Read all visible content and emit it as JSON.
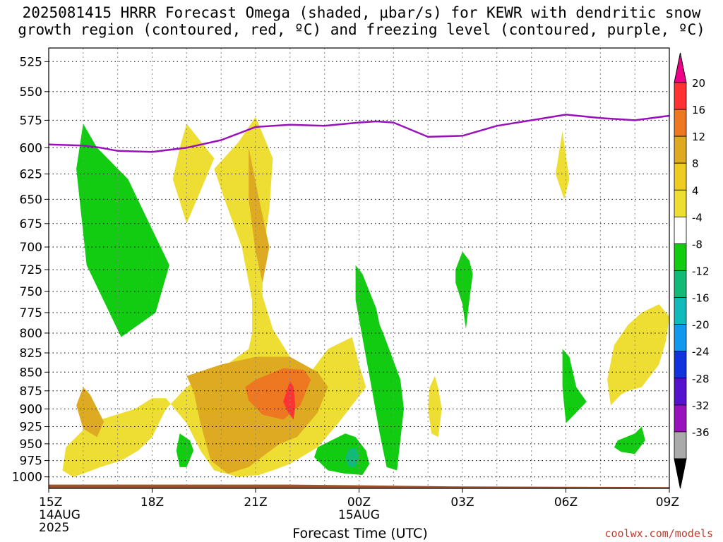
{
  "title": {
    "line1": "2025081415 HRRR Forecast Omega (shaded, μbar/s) for KEWR with dendritic snow",
    "line2": "growth region (contoured, red, ºC) and freezing level (contoured, purple, ºC)"
  },
  "watermark": "coolwx.com/models",
  "chart_data": {
    "type": "time-height",
    "title": "2025081415 HRRR Forecast Omega (shaded, μbar/s) for KEWR with dendritic snow growth region (contoured, red, ºC) and freezing level (contoured, purple, ºC)",
    "xlabel": "Forecast Time (UTC)",
    "ylabel": "",
    "x_ticks": [
      {
        "hour": 0,
        "lines": [
          "15Z",
          "14AUG",
          "2025"
        ]
      },
      {
        "hour": 3,
        "lines": [
          "18Z"
        ]
      },
      {
        "hour": 6,
        "lines": [
          "21Z"
        ]
      },
      {
        "hour": 9,
        "lines": [
          "00Z",
          "15AUG"
        ]
      },
      {
        "hour": 12,
        "lines": [
          "03Z"
        ]
      },
      {
        "hour": 15,
        "lines": [
          "06Z"
        ]
      },
      {
        "hour": 18,
        "lines": [
          "09Z"
        ]
      }
    ],
    "xlim": [
      0,
      18
    ],
    "y_ticks": [
      525,
      550,
      575,
      600,
      625,
      650,
      675,
      700,
      725,
      750,
      775,
      800,
      825,
      850,
      875,
      900,
      925,
      950,
      975,
      1000
    ],
    "ylim": [
      1018,
      514
    ],
    "y_scale": "log-pressure (hPa), inverted",
    "grid": true,
    "colorbar": {
      "labels": [
        "20",
        "16",
        "12",
        "8",
        "4",
        "-4",
        "-8",
        "-12",
        "-16",
        "-20",
        "-24",
        "-28",
        "-32",
        "-36"
      ],
      "colors": [
        "#ff3333",
        "#ee7722",
        "#ddaa22",
        "#eecc22",
        "#eedd33",
        "#ffffff",
        "#11cc11",
        "#11bb77",
        "#11bbbb",
        "#1199ee",
        "#1133dd",
        "#5511cc",
        "#9911bb",
        "#aaaaaa"
      ],
      "top_arrow": "#ee0088",
      "bottom_arrow": "#000000"
    },
    "freezing_level": {
      "color": "#9911bb",
      "x": [
        0,
        1,
        1.5,
        2,
        3,
        4,
        5,
        6,
        7,
        8,
        9,
        9.5,
        10,
        11,
        12,
        13,
        14,
        15,
        16,
        17,
        18
      ],
      "p": [
        597,
        598,
        600,
        603,
        604,
        600,
        593,
        581,
        579,
        580,
        577,
        576,
        577,
        590,
        589,
        580,
        575,
        570,
        573,
        575,
        571
      ]
    },
    "surface_fill": {
      "color": "#a0522d",
      "x": [
        0,
        7,
        12,
        18
      ],
      "p_top": [
        1012,
        1012,
        1015,
        1016
      ]
    },
    "omega_regions": [
      {
        "level": "-8",
        "color": "#11cc11",
        "x": [
          1.0,
          1.4,
          2.3,
          3.5,
          3.1,
          2.1,
          1.1,
          0.8
        ],
        "p": [
          578,
          600,
          630,
          720,
          775,
          805,
          720,
          620
        ]
      },
      {
        "level": "4",
        "color": "#eedd33",
        "x": [
          4.0,
          4.8,
          4.3,
          4.0,
          3.6,
          3.8
        ],
        "p": [
          578,
          610,
          650,
          675,
          630,
          600
        ]
      },
      {
        "level": "4",
        "color": "#eedd33",
        "x": [
          5.5,
          6.0,
          6.5,
          6.4,
          6.2,
          6.2,
          6.5,
          7.0,
          7.6,
          8.1,
          8.8,
          9.0,
          9.2,
          8.4,
          7.8,
          7.0,
          6.6,
          6.1,
          5.5,
          4.8,
          4.4,
          4.0,
          3.4,
          3.0,
          2.5,
          1.5,
          1.0,
          0.5,
          0.4,
          0.7,
          1.0,
          1.5,
          2.1,
          2.6,
          3.0,
          3.4,
          4.0,
          4.3,
          5.0,
          5.8,
          5.9,
          5.9,
          5.6,
          5.1,
          4.8
        ],
        "p": [
          595,
          572,
          610,
          660,
          710,
          755,
          795,
          830,
          850,
          820,
          805,
          840,
          870,
          920,
          955,
          980,
          988,
          997,
          1000,
          990,
          960,
          920,
          885,
          885,
          900,
          915,
          930,
          955,
          990,
          1000,
          995,
          985,
          975,
          960,
          940,
          900,
          870,
          860,
          845,
          820,
          800,
          760,
          700,
          650,
          620
        ]
      },
      {
        "level": "8",
        "color": "#ddaa22",
        "x": [
          5.8,
          6.1,
          6.4,
          6.2,
          6.0,
          5.8
        ],
        "p": [
          600,
          650,
          700,
          740,
          705,
          650
        ]
      },
      {
        "level": "8",
        "color": "#ddaa22",
        "x": [
          4.0,
          5.0,
          6.0,
          7.0,
          7.8,
          8.1,
          7.8,
          7.2,
          6.7,
          6.3,
          5.8,
          5.2,
          4.7,
          4.4,
          4.2
        ],
        "p": [
          855,
          840,
          830,
          830,
          850,
          870,
          905,
          940,
          950,
          965,
          985,
          995,
          975,
          920,
          875
        ]
      },
      {
        "level": "8",
        "color": "#ddaa22",
        "x": [
          1.0,
          1.2,
          1.6,
          1.4,
          1.0,
          0.8
        ],
        "p": [
          870,
          880,
          918,
          940,
          928,
          895
        ]
      },
      {
        "level": "12",
        "color": "#ee7722",
        "x": [
          6.0,
          6.8,
          7.4,
          7.6,
          7.3,
          6.8,
          6.2,
          5.8,
          5.7
        ],
        "p": [
          860,
          845,
          847,
          860,
          895,
          915,
          908,
          888,
          870
        ]
      },
      {
        "level": "16",
        "color": "#ff3333",
        "x": [
          7.0,
          7.1,
          7.15,
          7.1,
          6.95,
          6.8
        ],
        "p": [
          862,
          870,
          895,
          915,
          905,
          890
        ]
      },
      {
        "level": "-8",
        "color": "#11cc11",
        "x": [
          3.8,
          4.1,
          4.2,
          4.0,
          3.8,
          3.7
        ],
        "p": [
          935,
          945,
          960,
          985,
          985,
          960
        ]
      },
      {
        "level": "-8",
        "color": "#11cc11",
        "x": [
          7.8,
          8.6,
          8.9,
          9.2,
          9.3,
          9.1,
          8.6,
          8.1,
          7.7
        ],
        "p": [
          955,
          935,
          940,
          960,
          980,
          997,
          995,
          990,
          970
        ]
      },
      {
        "level": "-12",
        "color": "#11bb77",
        "x": [
          8.7,
          8.9,
          9.0,
          8.9,
          8.7,
          8.6
        ],
        "p": [
          958,
          955,
          968,
          985,
          985,
          970
        ]
      },
      {
        "level": "-8",
        "color": "#11cc11",
        "x": [
          8.9,
          9.1,
          9.5,
          9.6,
          9.7,
          10.0,
          10.2,
          10.3,
          10.1,
          9.8,
          9.6,
          9.4,
          9.2,
          8.9
        ],
        "p": [
          720,
          730,
          770,
          790,
          800,
          835,
          860,
          900,
          990,
          985,
          935,
          880,
          830,
          760
        ]
      },
      {
        "level": "4",
        "color": "#eedd33",
        "x": [
          11.2,
          11.3,
          11.4,
          11.3,
          11.1,
          11.0,
          11.05
        ],
        "p": [
          855,
          872,
          900,
          940,
          935,
          900,
          870
        ]
      },
      {
        "level": "-8",
        "color": "#11cc11",
        "x": [
          12.0,
          12.2,
          12.3,
          12.2,
          12.1,
          12.0,
          11.8,
          11.8
        ],
        "p": [
          705,
          715,
          730,
          760,
          795,
          765,
          740,
          725
        ]
      },
      {
        "level": "4",
        "color": "#eedd33",
        "x": [
          14.9,
          15.1,
          14.95,
          14.7
        ],
        "p": [
          585,
          630,
          650,
          625
        ]
      },
      {
        "level": "-8",
        "color": "#11cc11",
        "x": [
          14.9,
          15.1,
          15.3,
          15.6,
          15.3,
          15.0,
          14.9
        ],
        "p": [
          820,
          830,
          870,
          890,
          905,
          920,
          870
        ]
      },
      {
        "level": "4",
        "color": "#eedd33",
        "x": [
          16.8,
          17.2,
          17.7,
          18.0,
          17.9,
          17.7,
          17.2,
          16.8,
          16.6,
          16.3,
          16.2,
          16.4
        ],
        "p": [
          790,
          775,
          765,
          780,
          810,
          840,
          870,
          875,
          880,
          895,
          860,
          815
        ]
      },
      {
        "level": "-8",
        "color": "#11cc11",
        "x": [
          16.5,
          17.0,
          17.2,
          17.3,
          17.0,
          16.6,
          16.4
        ],
        "p": [
          945,
          935,
          925,
          945,
          965,
          962,
          955
        ]
      }
    ]
  }
}
